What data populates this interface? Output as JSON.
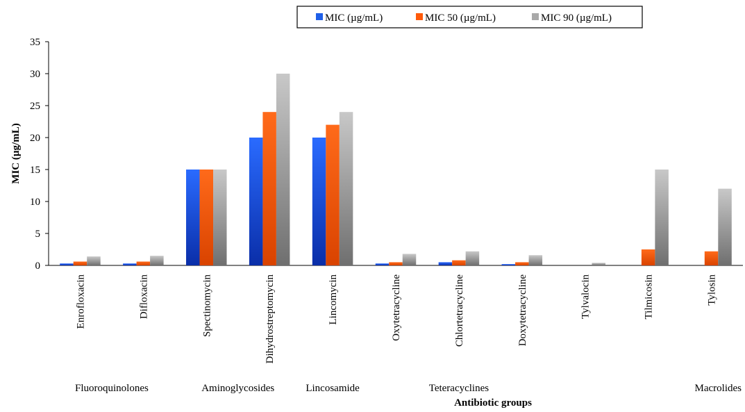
{
  "chart_data": {
    "type": "bar",
    "title": "",
    "xlabel": "Antibiotic groups",
    "ylabel": "MIC (µg/mL)",
    "ylim": [
      0,
      35
    ],
    "yticks": [
      0,
      5,
      10,
      15,
      20,
      25,
      30,
      35
    ],
    "grid": false,
    "legend_position": "top",
    "categories": [
      "Enrofloxacin",
      "Difloxacin",
      "Spectinomycin",
      "Dihydrostreptomycin",
      "Lincomycin",
      "Oxytetracycline",
      "Chlortetracycline",
      "Doxytetracycline",
      "Tylvalocin",
      "Tilmicosin",
      "Tylosin"
    ],
    "groups": [
      {
        "label": "Fluoroquinolones",
        "categories": [
          "Enrofloxacin",
          "Difloxacin"
        ]
      },
      {
        "label": "Aminoglycosides",
        "categories": [
          "Spectinomycin",
          "Dihydrostreptomycin"
        ]
      },
      {
        "label": "Lincosamide",
        "categories": [
          "Lincomycin"
        ]
      },
      {
        "label": "Teteracyclines",
        "categories": [
          "Oxytetracycline",
          "Chlortetracycline",
          "Doxytetracycline"
        ]
      },
      {
        "label": "Macrolides",
        "categories": [
          "Tylvalocin",
          "Tilmicosin",
          "Tylosin"
        ]
      }
    ],
    "series": [
      {
        "name": "MIC (µg/mL)",
        "color": "#1f5fe8",
        "values": [
          0.3,
          0.3,
          15,
          20,
          20,
          0.3,
          0.5,
          0.2,
          0,
          0,
          0
        ]
      },
      {
        "name": "MIC 50 (µg/mL)",
        "color": "#ff5a0a",
        "values": [
          0.6,
          0.6,
          15,
          24,
          22,
          0.5,
          0.8,
          0.5,
          0,
          2.5,
          2.2
        ]
      },
      {
        "name": "MIC 90 (µg/mL)",
        "color": "#a9a9a9",
        "values": [
          1.4,
          1.5,
          15,
          30,
          24,
          1.8,
          2.2,
          1.6,
          0.4,
          15,
          12
        ]
      }
    ]
  }
}
